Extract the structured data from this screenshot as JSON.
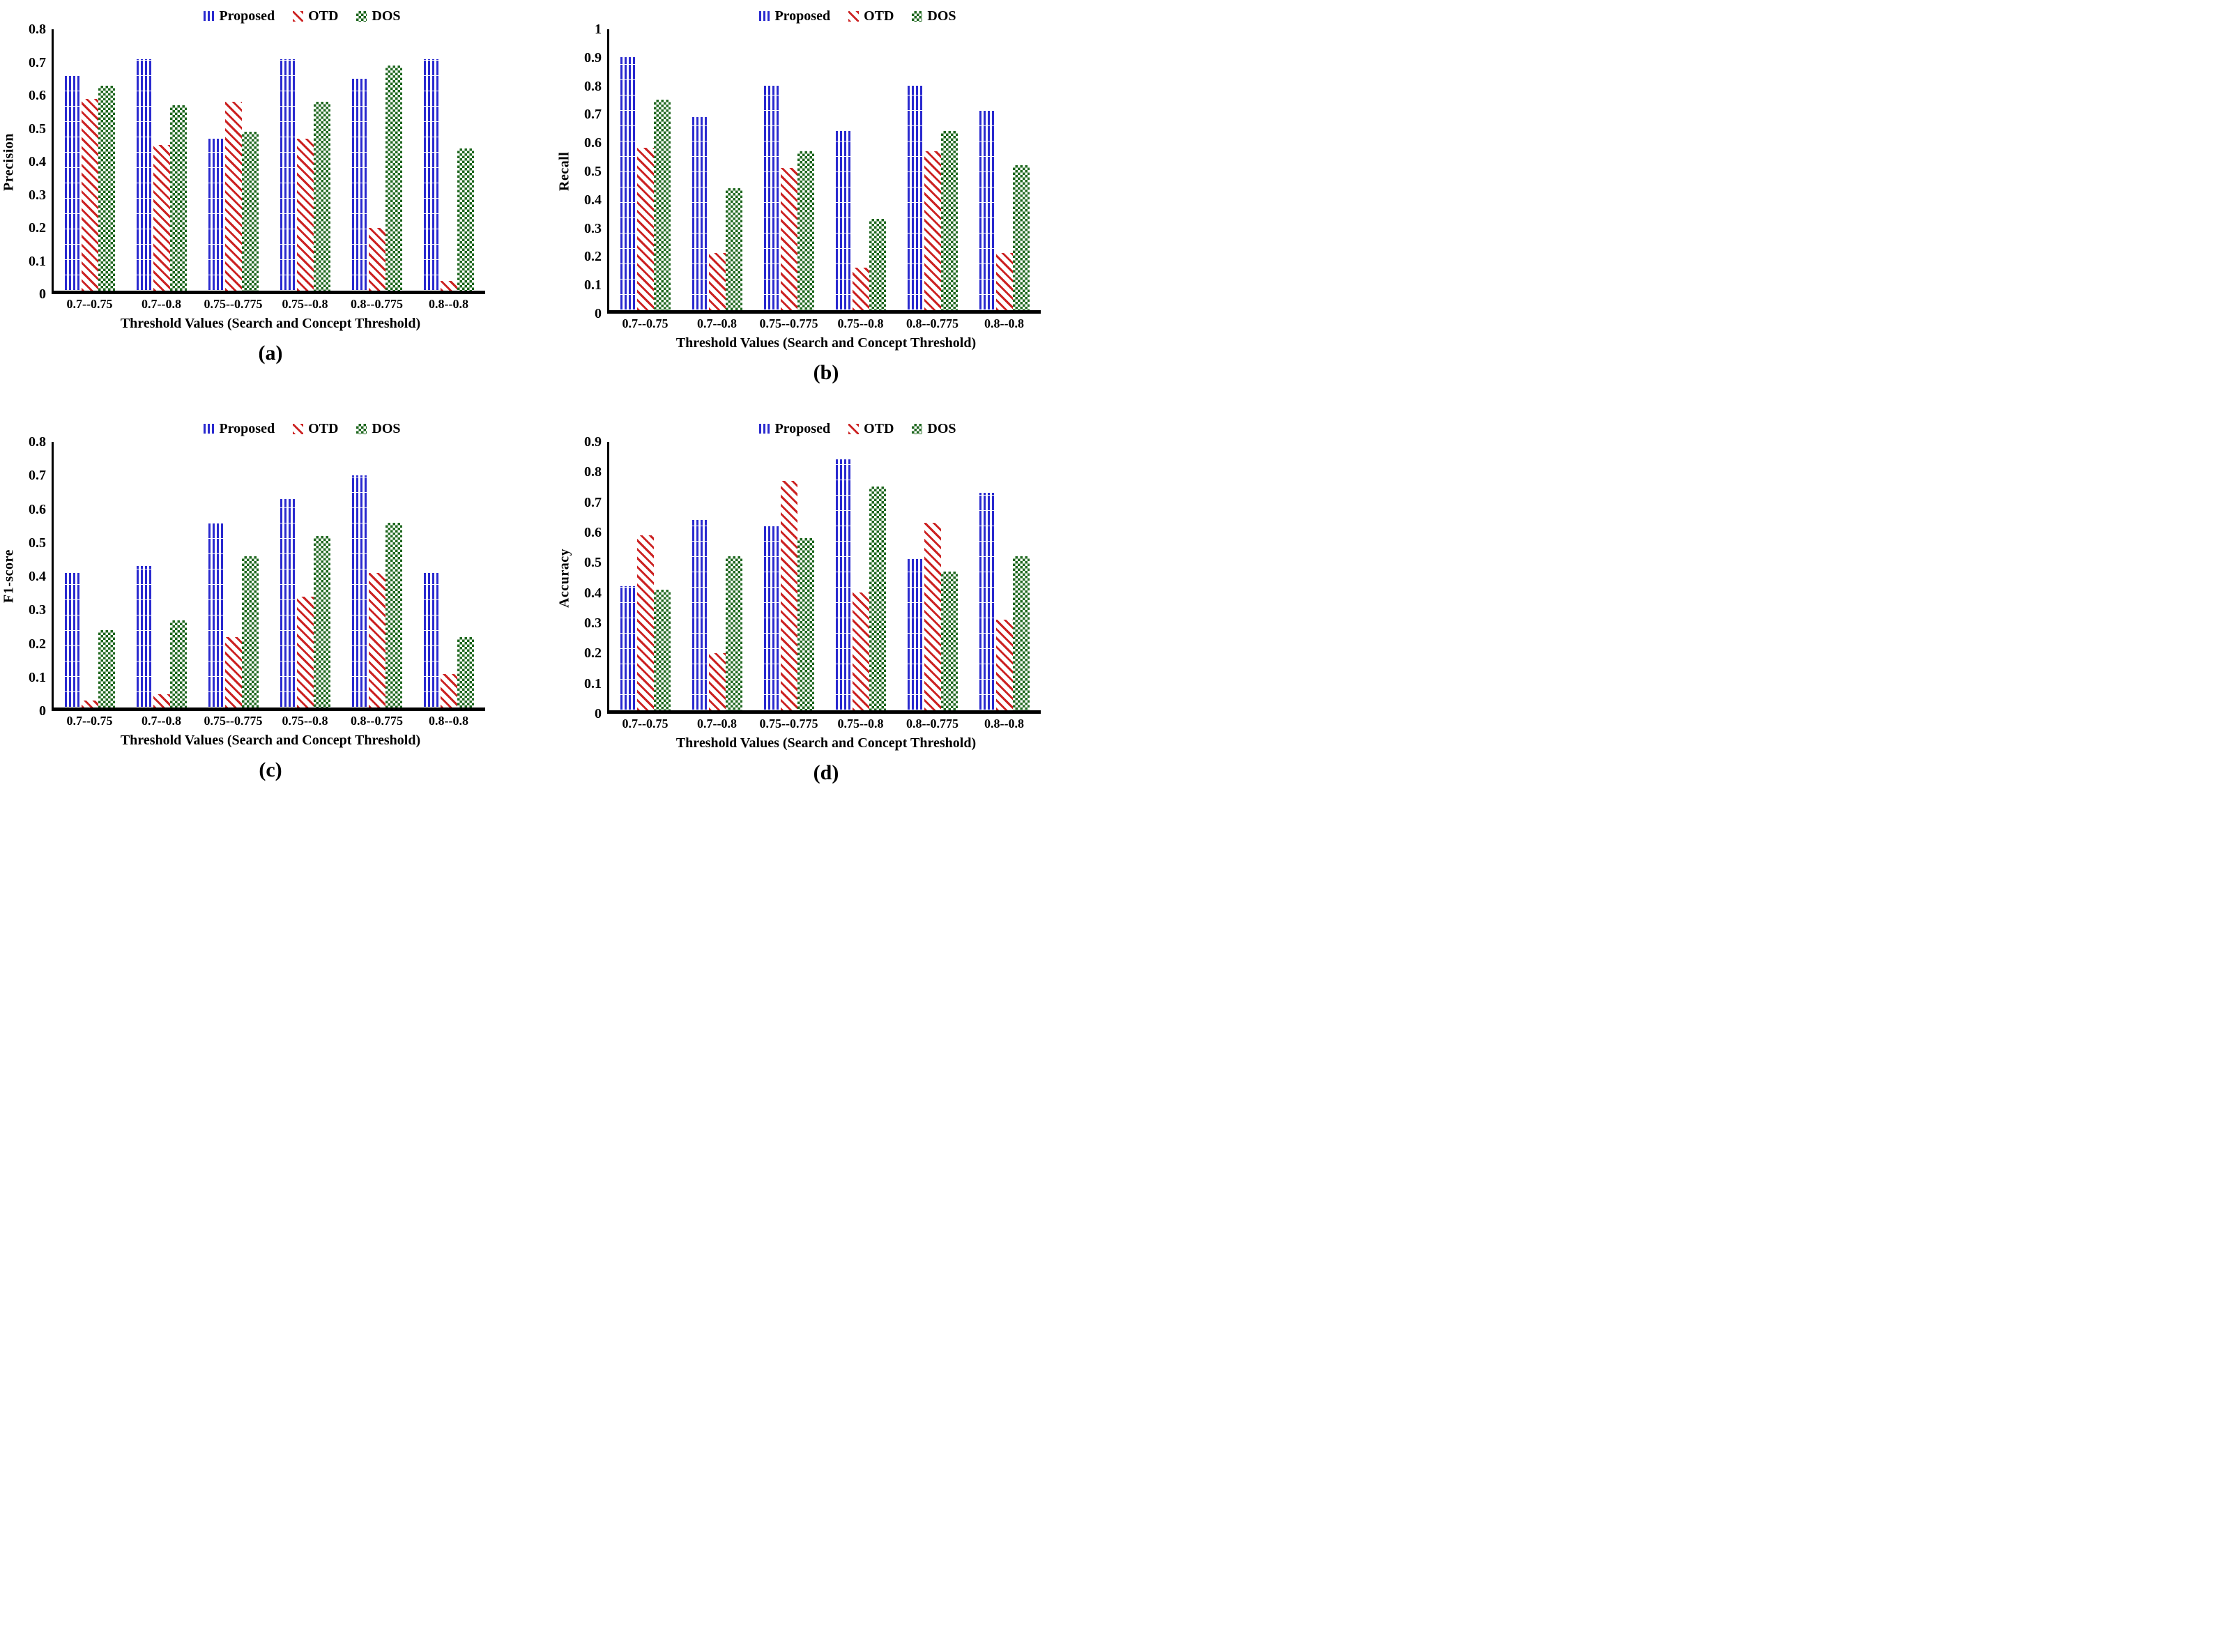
{
  "figure": {
    "colors": {
      "proposed": "#2A2ACF",
      "otd": "#CC2222",
      "dos": "#1E671E"
    },
    "legend_labels": [
      "Proposed",
      "OTD",
      "DOS"
    ]
  },
  "panels": [
    {
      "caption": "(a)"
    },
    {
      "caption": "(b)"
    },
    {
      "caption": "(c)"
    },
    {
      "caption": "(d)"
    }
  ],
  "chart_data": [
    {
      "type": "bar",
      "panel": "a",
      "ylabel": "Precision",
      "xlabel": "Threshold Values (Search and Concept Threshold)",
      "categories": [
        "0.7--0.75",
        "0.7--0.8",
        "0.75--0.775",
        "0.75--0.8",
        "0.8--0.775",
        "0.8--0.8"
      ],
      "series": [
        {
          "name": "Proposed",
          "key": "proposed",
          "values": [
            0.65,
            0.7,
            0.46,
            0.7,
            0.64,
            0.7
          ]
        },
        {
          "name": "OTD",
          "key": "otd",
          "values": [
            0.58,
            0.44,
            0.57,
            0.46,
            0.19,
            0.03
          ]
        },
        {
          "name": "DOS",
          "key": "dos",
          "values": [
            0.62,
            0.56,
            0.48,
            0.57,
            0.68,
            0.43
          ]
        }
      ],
      "ylim": [
        0,
        0.8
      ],
      "yticks": [
        "0",
        "0.1",
        "0.2",
        "0.3",
        "0.4",
        "0.5",
        "0.6",
        "0.7",
        "0.8"
      ],
      "grid": false,
      "legend_position": "top"
    },
    {
      "type": "bar",
      "panel": "b",
      "ylabel": "Recall",
      "xlabel": "Threshold Values (Search and Concept Threshold)",
      "categories": [
        "0.7--0.75",
        "0.7--0.8",
        "0.75--0.775",
        "0.75--0.8",
        "0.8--0.775",
        "0.8--0.8"
      ],
      "series": [
        {
          "name": "Proposed",
          "key": "proposed",
          "values": [
            0.89,
            0.68,
            0.79,
            0.63,
            0.79,
            0.7
          ]
        },
        {
          "name": "OTD",
          "key": "otd",
          "values": [
            0.57,
            0.2,
            0.5,
            0.15,
            0.56,
            0.2
          ]
        },
        {
          "name": "DOS",
          "key": "dos",
          "values": [
            0.74,
            0.43,
            0.56,
            0.32,
            0.63,
            0.51
          ]
        }
      ],
      "ylim": [
        0,
        1
      ],
      "yticks": [
        "0",
        "0.1",
        "0.2",
        "0.3",
        "0.4",
        "0.5",
        "0.6",
        "0.7",
        "0.8",
        "0.9",
        "1"
      ],
      "grid": false,
      "legend_position": "top"
    },
    {
      "type": "bar",
      "panel": "c",
      "ylabel": "F1-score",
      "xlabel": "Threshold Values (Search and Concept Threshold)",
      "categories": [
        "0.7--0.75",
        "0.7--0.8",
        "0.75--0.775",
        "0.75--0.8",
        "0.8--0.775",
        "0.8--0.8"
      ],
      "series": [
        {
          "name": "Proposed",
          "key": "proposed",
          "values": [
            0.4,
            0.42,
            0.55,
            0.62,
            0.69,
            0.4
          ]
        },
        {
          "name": "OTD",
          "key": "otd",
          "values": [
            0.02,
            0.04,
            0.21,
            0.33,
            0.4,
            0.1
          ]
        },
        {
          "name": "DOS",
          "key": "dos",
          "values": [
            0.23,
            0.26,
            0.45,
            0.51,
            0.55,
            0.21
          ]
        }
      ],
      "ylim": [
        0,
        0.8
      ],
      "yticks": [
        "0",
        "0.1",
        "0.2",
        "0.3",
        "0.4",
        "0.5",
        "0.6",
        "0.7",
        "0.8"
      ],
      "grid": false,
      "legend_position": "top"
    },
    {
      "type": "bar",
      "panel": "d",
      "ylabel": "Accuracy",
      "xlabel": "Threshold Values (Search and Concept Threshold)",
      "categories": [
        "0.7--0.75",
        "0.7--0.8",
        "0.75--0.775",
        "0.75--0.8",
        "0.8--0.775",
        "0.8--0.8"
      ],
      "series": [
        {
          "name": "Proposed",
          "key": "proposed",
          "values": [
            0.41,
            0.63,
            0.61,
            0.83,
            0.5,
            0.72
          ]
        },
        {
          "name": "OTD",
          "key": "otd",
          "values": [
            0.58,
            0.19,
            0.76,
            0.39,
            0.62,
            0.3
          ]
        },
        {
          "name": "DOS",
          "key": "dos",
          "values": [
            0.4,
            0.51,
            0.57,
            0.74,
            0.46,
            0.51
          ]
        }
      ],
      "ylim": [
        0,
        0.9
      ],
      "yticks": [
        "0",
        "0.1",
        "0.2",
        "0.3",
        "0.4",
        "0.5",
        "0.6",
        "0.7",
        "0.8",
        "0.9"
      ],
      "grid": false,
      "legend_position": "top"
    }
  ]
}
